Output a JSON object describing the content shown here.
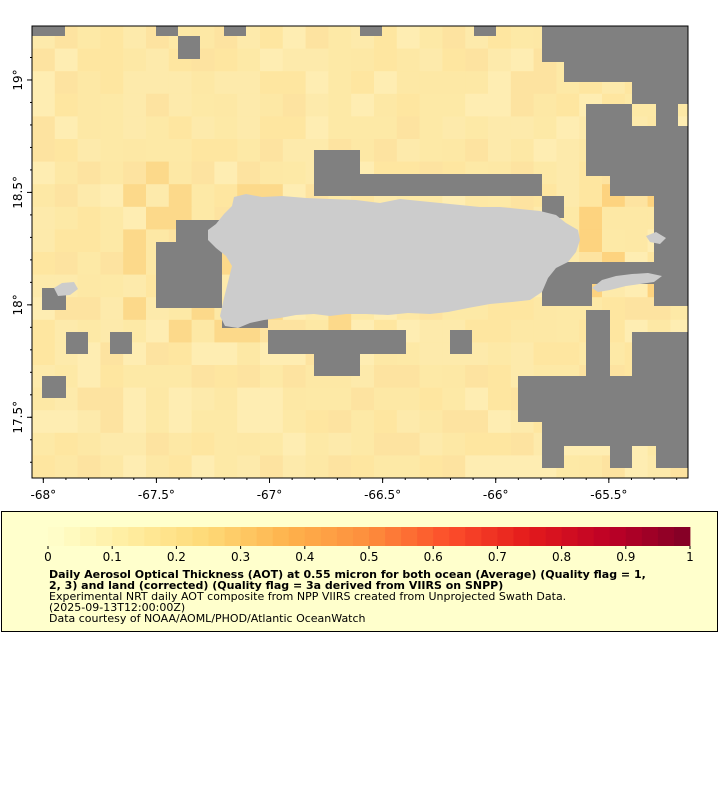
{
  "map": {
    "x_axis_labels": [
      "-68°",
      "-67.5°",
      "-67°",
      "-66.5°",
      "-66°",
      "-65.5°"
    ],
    "x_axis_values": [
      -68,
      -67.5,
      -67,
      -66.5,
      -66,
      -65.5
    ],
    "y_axis_labels": [
      "19°",
      "18.5°",
      "18°",
      "17.5°"
    ],
    "y_axis_values": [
      19,
      18.5,
      18,
      17.5
    ],
    "lon_range": [
      -68.05,
      -65.15
    ],
    "lat_range": [
      17.23,
      19.24
    ],
    "colors": {
      "no_data": "#808080",
      "land": "#cccccc",
      "typical_aot": "#fde9a6"
    }
  },
  "legend": {
    "colorbar_labels": [
      "0",
      "0.1",
      "0.2",
      "0.3",
      "0.4",
      "0.5",
      "0.6",
      "0.7",
      "0.8",
      "0.9",
      "1"
    ],
    "colorbar_range": [
      0,
      1
    ],
    "colorbar_colors": [
      "#ffffcc",
      "#ffeda0",
      "#fed976",
      "#feb24c",
      "#fd8d3c",
      "#fc4e2a",
      "#e31a1c",
      "#bd0026",
      "#800026"
    ],
    "title_line1": "Daily Aerosol Optical Thickness (AOT) at 0.55 micron for both ocean (Average) (Quality flag = 1,",
    "title_line2": "2, 3) and land (corrected) (Quality flag = 3a derived from VIIRS on SNPP)",
    "line3": "Experimental NRT daily AOT composite from NPP VIIRS created from Unprojected Swath Data.",
    "line4": "(2025-09-13T12:00:00Z)",
    "line5": "Data courtesy of NOAA/AOML/PHOD/Atlantic OceanWatch"
  }
}
